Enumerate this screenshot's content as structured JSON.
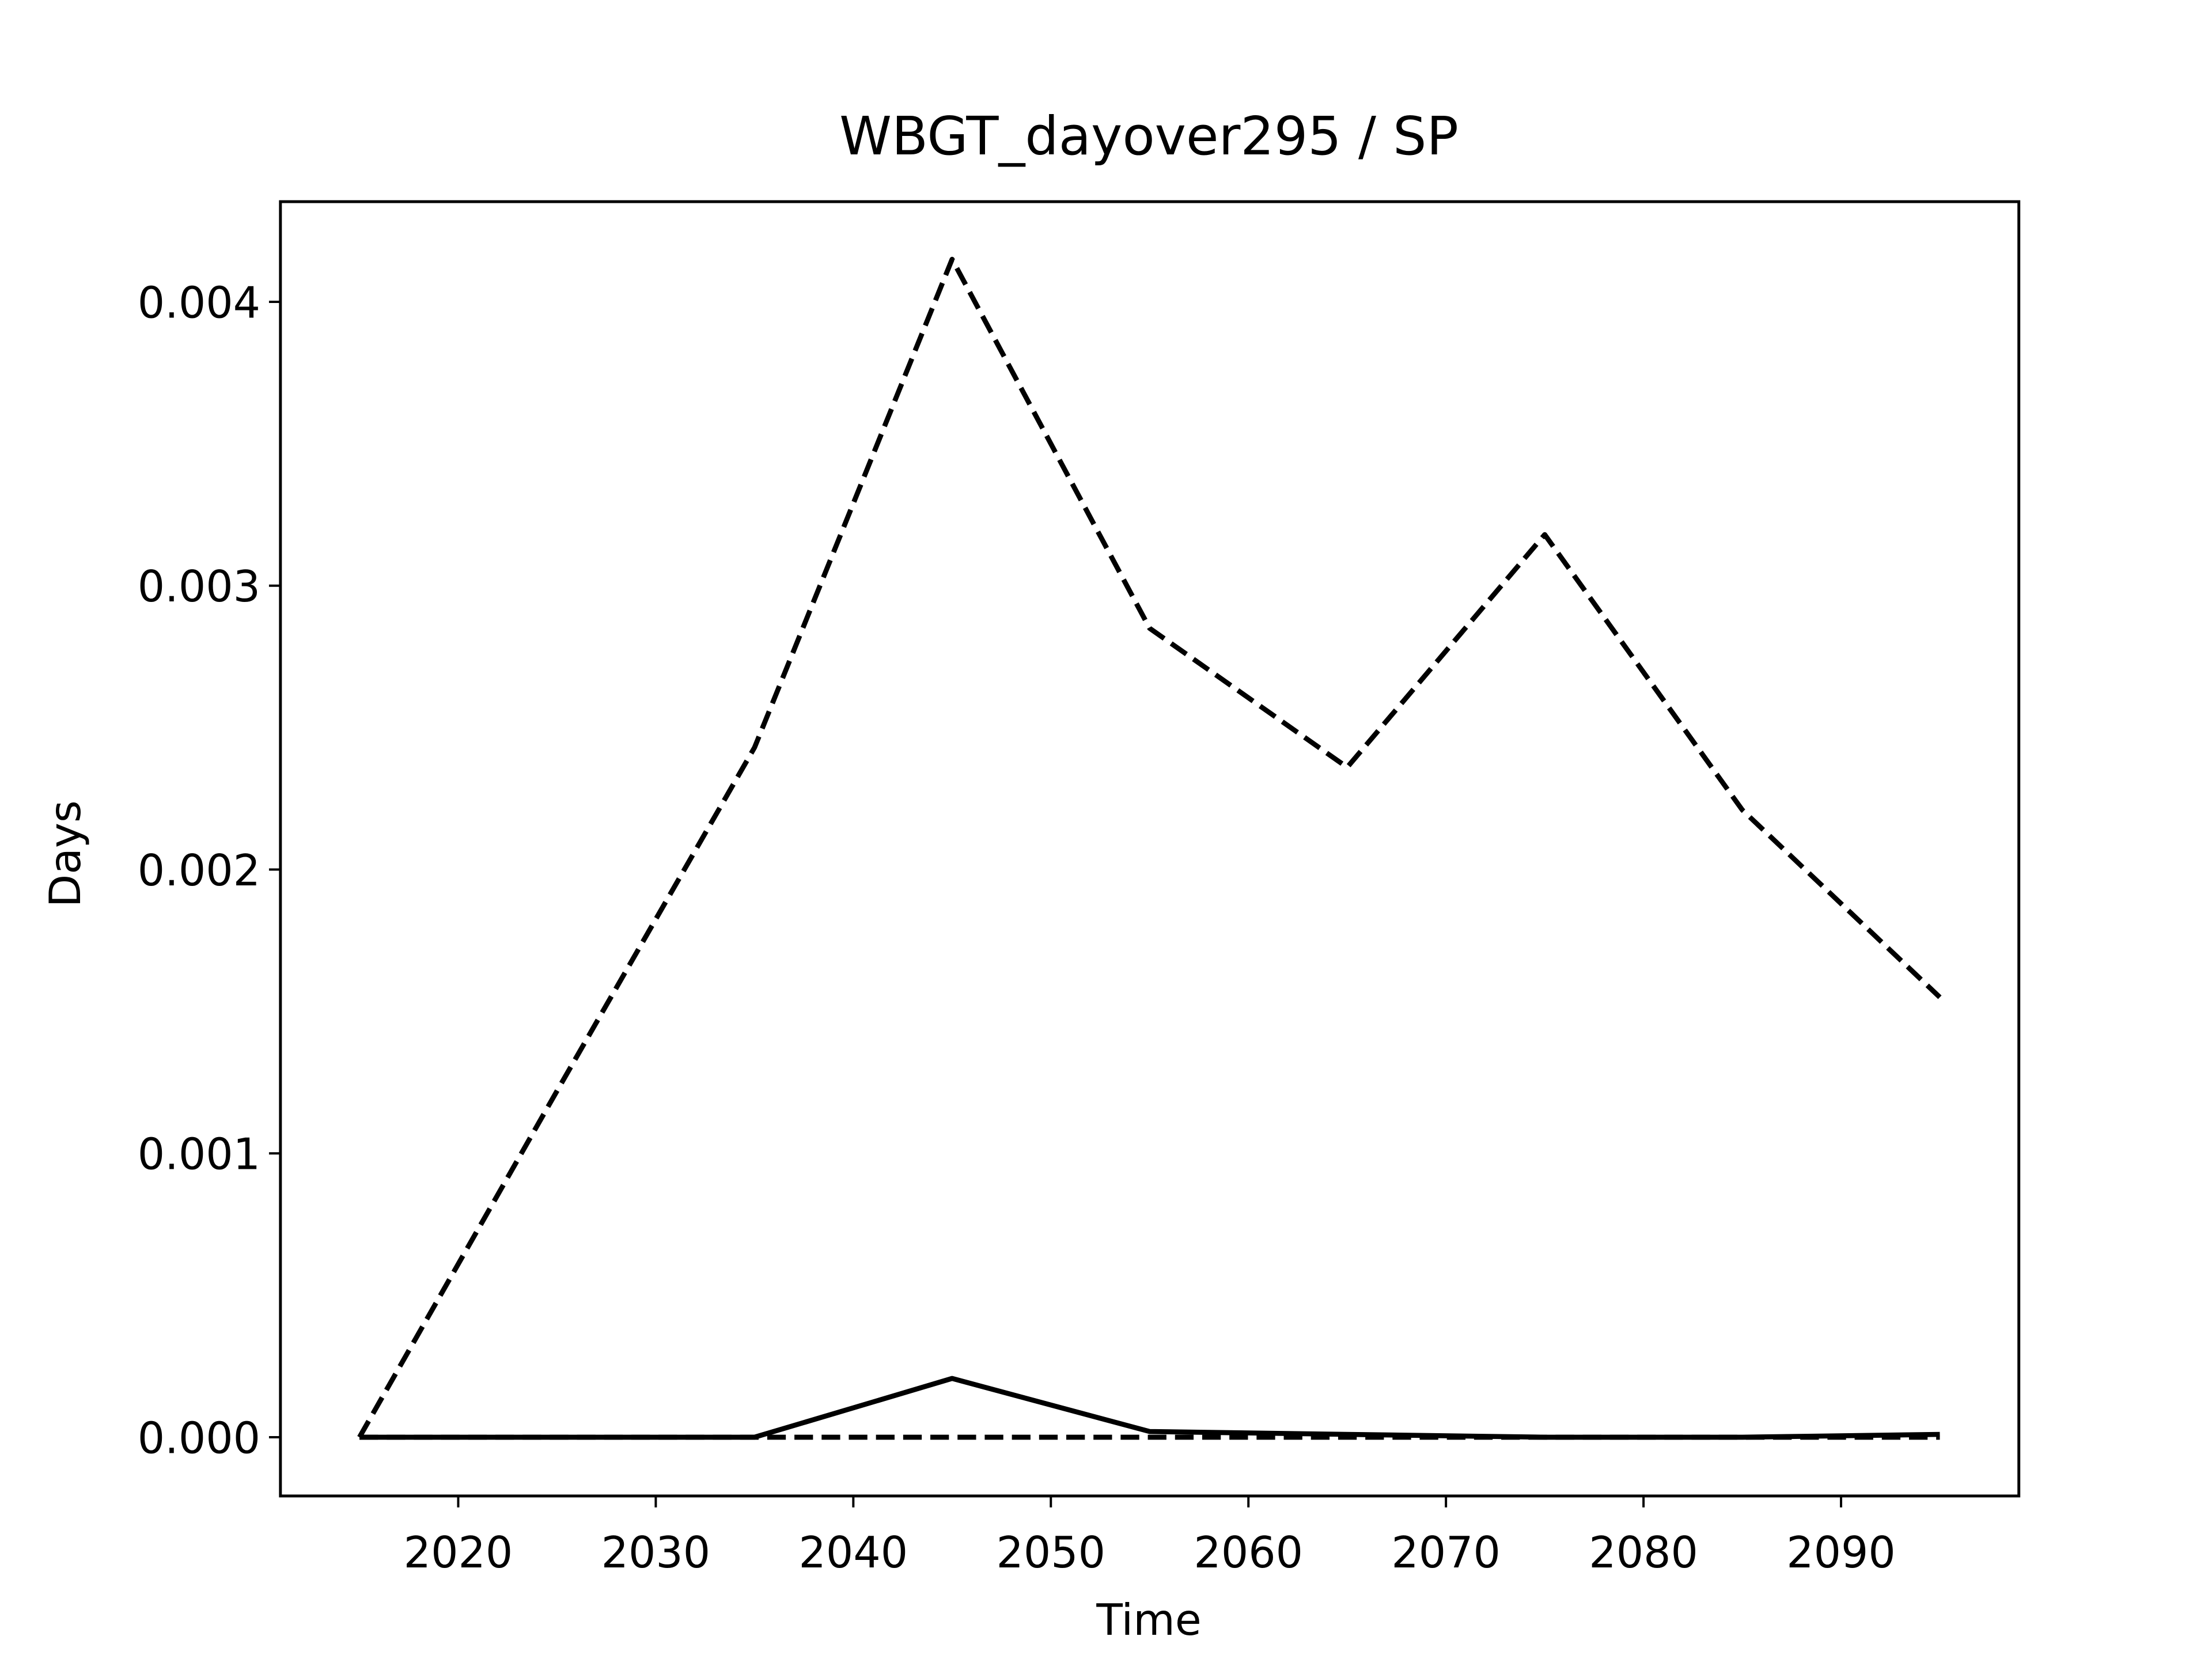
{
  "chart_data": {
    "type": "line",
    "title": "WBGT_dayover295 / SP",
    "xlabel": "Time",
    "ylabel": "Days",
    "x": [
      2015,
      2025,
      2035,
      2045,
      2055,
      2065,
      2075,
      2085,
      2095
    ],
    "series": [
      {
        "color": "#000000",
        "dashed": true,
        "values": [
          0,
          0.00122,
          0.00243,
          0.00415,
          0.00285,
          0.00236,
          0.00318,
          0.00221,
          0.00155
        ]
      },
      {
        "color": "#000000",
        "dashed": false,
        "values": [
          0,
          0,
          0,
          0.000207,
          2e-05,
          1e-05,
          0,
          0,
          1e-05
        ]
      },
      {
        "color": "#000000",
        "dashed": true,
        "values": [
          0,
          0,
          0,
          0,
          0,
          0,
          0,
          0,
          0
        ]
      }
    ],
    "xlim": [
      2011,
      2099
    ],
    "ylim": [
      -0.000207,
      0.004353
    ],
    "xticks": [
      2020,
      2030,
      2040,
      2050,
      2060,
      2070,
      2080,
      2090
    ],
    "yticks": [
      {
        "value": 0,
        "label": "0.000"
      },
      {
        "value": 0.001,
        "label": "0.001"
      },
      {
        "value": 0.002,
        "label": "0.002"
      },
      {
        "value": 0.003,
        "label": "0.003"
      },
      {
        "value": 0.004,
        "label": "0.004"
      }
    ],
    "grid": false
  }
}
